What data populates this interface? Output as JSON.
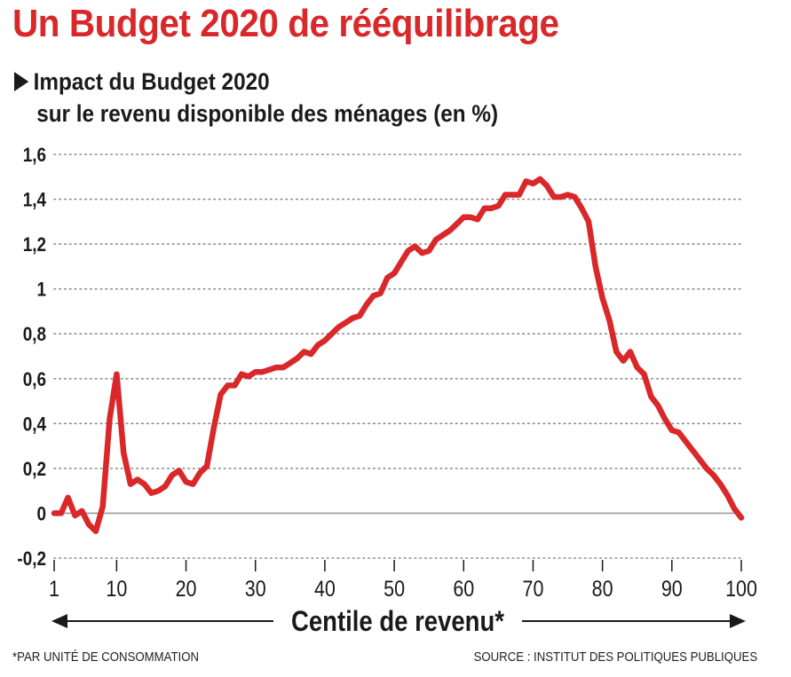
{
  "title": "Un Budget 2020 de rééquilibrage",
  "subtitle_line1": "Impact du Budget 2020",
  "subtitle_line2": "sur le revenu disponible des ménages (en %)",
  "footnote": "*PAR UNITÉ DE CONSOMMATION",
  "source": "SOURCE : INSTITUT DES POLITIQUES PUBLIQUES",
  "colors": {
    "title": "#d9272a",
    "line": "#d9272a",
    "grid": "#8c8c8c",
    "zero_line": "#9a9a9a",
    "text": "#1a1a1a"
  },
  "chart_data": {
    "type": "line",
    "xlabel": "Centile de revenu*",
    "ylabel": "",
    "xlim": [
      1,
      100
    ],
    "ylim": [
      -0.2,
      1.6
    ],
    "grid": true,
    "y_ticks": [
      {
        "value": -0.2,
        "label": "-0,2"
      },
      {
        "value": 0,
        "label": "0"
      },
      {
        "value": 0.2,
        "label": "0,2"
      },
      {
        "value": 0.4,
        "label": "0,4"
      },
      {
        "value": 0.6,
        "label": "0,6"
      },
      {
        "value": 0.8,
        "label": "0,8"
      },
      {
        "value": 1,
        "label": "1"
      },
      {
        "value": 1.2,
        "label": "1,2"
      },
      {
        "value": 1.4,
        "label": "1,4"
      },
      {
        "value": 1.6,
        "label": "1,6"
      }
    ],
    "x_ticks": [
      {
        "value": 1,
        "label": "1"
      },
      {
        "value": 10,
        "label": "10"
      },
      {
        "value": 20,
        "label": "20"
      },
      {
        "value": 30,
        "label": "30"
      },
      {
        "value": 40,
        "label": "40"
      },
      {
        "value": 50,
        "label": "50"
      },
      {
        "value": 60,
        "label": "60"
      },
      {
        "value": 70,
        "label": "70"
      },
      {
        "value": 80,
        "label": "80"
      },
      {
        "value": 90,
        "label": "90"
      },
      {
        "value": 100,
        "label": "100"
      }
    ],
    "series": [
      {
        "x": [
          1,
          2,
          3,
          4,
          5,
          6,
          7,
          8,
          9,
          10,
          11,
          12,
          13,
          14,
          15,
          16,
          17,
          18,
          19,
          20,
          21,
          22,
          23,
          24,
          25,
          26,
          27,
          28,
          29,
          30,
          31,
          32,
          33,
          34,
          35,
          36,
          37,
          38,
          39,
          40,
          41,
          42,
          43,
          44,
          45,
          46,
          47,
          48,
          49,
          50,
          51,
          52,
          53,
          54,
          55,
          56,
          57,
          58,
          59,
          60,
          61,
          62,
          63,
          64,
          65,
          66,
          67,
          68,
          69,
          70,
          71,
          72,
          73,
          74,
          75,
          76,
          77,
          78,
          79,
          80,
          81,
          82,
          83,
          84,
          85,
          86,
          87,
          88,
          89,
          90,
          91,
          92,
          93,
          94,
          95,
          96,
          97,
          98,
          99,
          100
        ],
        "y": [
          0.0,
          0.0,
          0.07,
          -0.01,
          0.01,
          -0.05,
          -0.08,
          0.03,
          0.42,
          0.62,
          0.27,
          0.13,
          0.15,
          0.13,
          0.09,
          0.1,
          0.12,
          0.17,
          0.19,
          0.14,
          0.13,
          0.18,
          0.21,
          0.38,
          0.53,
          0.57,
          0.57,
          0.62,
          0.61,
          0.63,
          0.63,
          0.64,
          0.65,
          0.65,
          0.67,
          0.69,
          0.72,
          0.71,
          0.75,
          0.77,
          0.8,
          0.83,
          0.85,
          0.87,
          0.88,
          0.93,
          0.97,
          0.98,
          1.05,
          1.07,
          1.12,
          1.17,
          1.19,
          1.16,
          1.17,
          1.22,
          1.24,
          1.26,
          1.29,
          1.32,
          1.32,
          1.31,
          1.36,
          1.36,
          1.37,
          1.42,
          1.42,
          1.42,
          1.48,
          1.47,
          1.49,
          1.46,
          1.41,
          1.41,
          1.42,
          1.41,
          1.36,
          1.3,
          1.1,
          0.96,
          0.86,
          0.72,
          0.68,
          0.72,
          0.65,
          0.62,
          0.52,
          0.48,
          0.42,
          0.37,
          0.36,
          0.32,
          0.28,
          0.24,
          0.2,
          0.17,
          0.13,
          0.08,
          0.02,
          -0.02
        ]
      }
    ]
  }
}
